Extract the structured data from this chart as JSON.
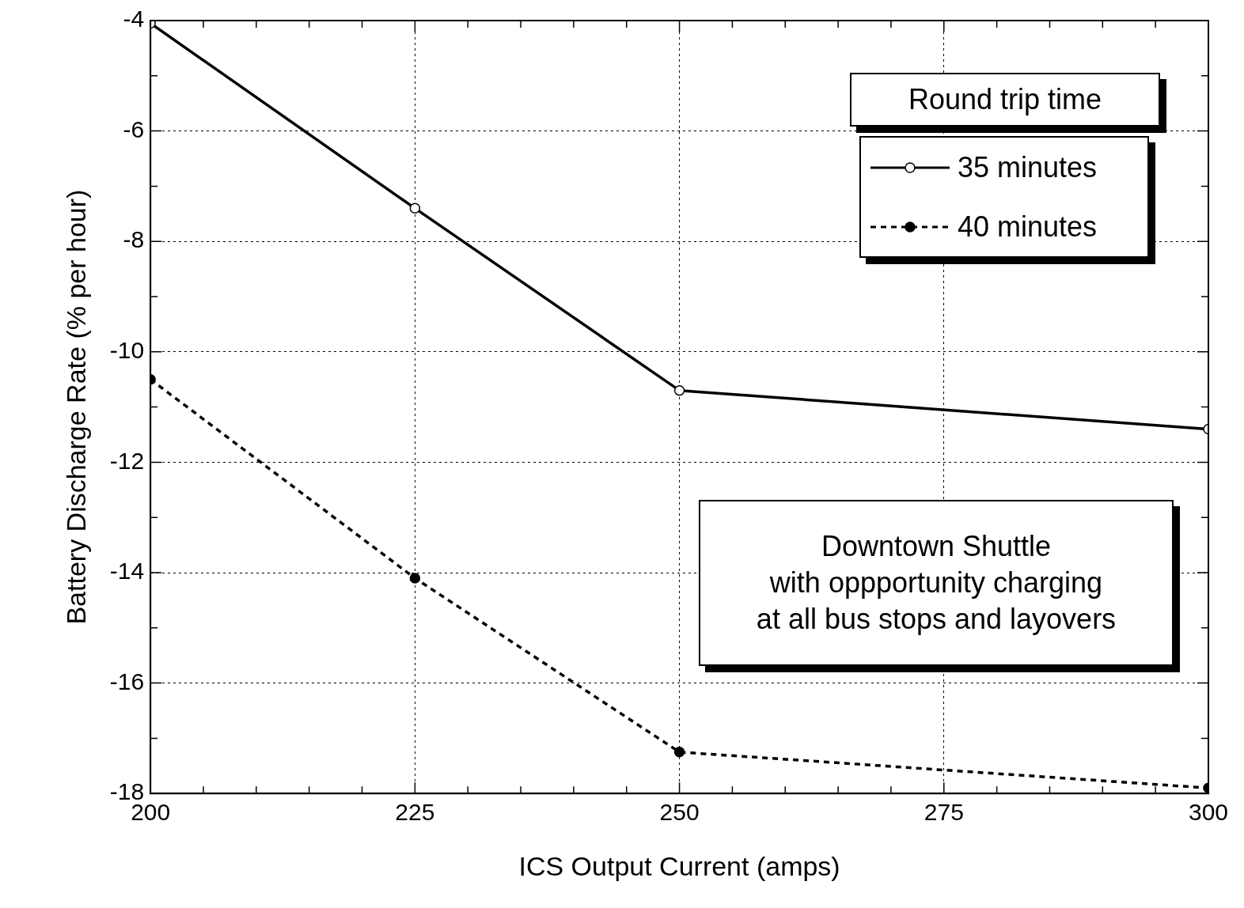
{
  "chart_data": {
    "type": "line",
    "xlabel": "ICS Output Current (amps)",
    "ylabel": "Battery Discharge Rate (% per hour)",
    "legend_title": "Round trip time",
    "legend": "top right",
    "grid": true,
    "marker": "circle",
    "x": [
      200,
      225,
      250,
      300
    ],
    "series": [
      {
        "name": "35 minutes",
        "color": "#000000",
        "line_style": "solid",
        "values": [
          -4.05,
          -7.4,
          -10.7,
          -11.4
        ]
      },
      {
        "name": "40 minutes",
        "color": "#000000",
        "line_style": "dashed",
        "values": [
          -10.5,
          -14.1,
          -17.25,
          -17.9
        ]
      }
    ],
    "xlim": [
      200,
      300
    ],
    "xticks": [
      200,
      {
        "value": 205,
        "label": null
      },
      {
        "value": 210,
        "label": null
      },
      {
        "value": 215,
        "label": null
      },
      {
        "value": 220,
        "label": null
      },
      225,
      {
        "value": 230,
        "label": null
      },
      {
        "value": 235,
        "label": null
      },
      {
        "value": 240,
        "label": null
      },
      {
        "value": 245,
        "label": null
      },
      250,
      {
        "value": 255,
        "label": null
      },
      {
        "value": 260,
        "label": null
      },
      {
        "value": 265,
        "label": null
      },
      {
        "value": 270,
        "label": null
      },
      275,
      {
        "value": 280,
        "label": null
      },
      {
        "value": 285,
        "label": null
      },
      {
        "value": 290,
        "label": null
      },
      {
        "value": 295,
        "label": null
      },
      300
    ],
    "ylim": [
      -18,
      -4
    ],
    "yticks": [
      -4,
      {
        "value": -5,
        "label": null
      },
      -6,
      {
        "value": -7,
        "label": null
      },
      -8,
      {
        "value": -9,
        "label": null
      },
      -10,
      {
        "value": -11,
        "label": null
      },
      -12,
      {
        "value": -13,
        "label": null
      },
      -14,
      {
        "value": -15,
        "label": null
      },
      -16,
      {
        "value": -17,
        "label": null
      },
      -18
    ],
    "annotations": [
      "Downtown Shuttle\nwith oppportunity charging\nat all bus stops and layovers"
    ]
  }
}
